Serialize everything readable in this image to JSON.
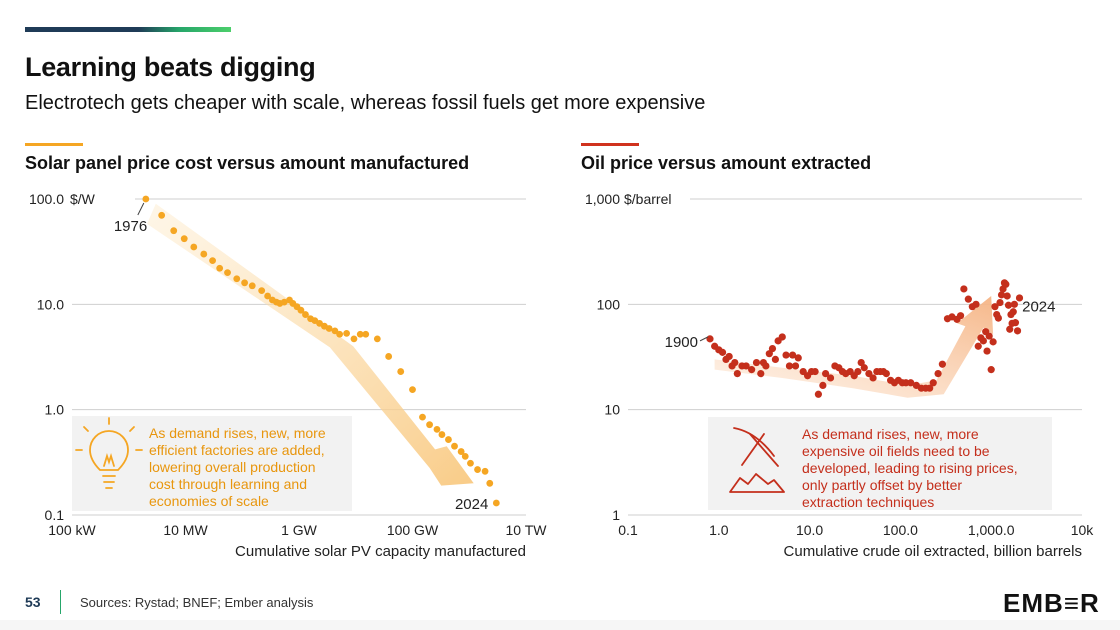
{
  "title": "Learning beats digging",
  "subtitle": "Electrotech gets cheaper with scale, whereas fossil fuels get more expensive",
  "footer": {
    "page_number": "53",
    "sources": "Sources: Rystad; BNEF; Ember analysis",
    "logo": "EMB≡R"
  },
  "colors": {
    "solar": "#f5a623",
    "oil": "#c42f1c",
    "brand": "#1f3b57",
    "green": "#26a66a"
  },
  "chart_data": [
    {
      "type": "scatter",
      "title": "Solar panel price cost versus amount manufactured",
      "xlabel": "Cumulative solar PV capacity manufactured",
      "unit_label": "$/W",
      "x_scale": "log",
      "y_scale": "log",
      "xlim": [
        0.1,
        10000000
      ],
      "ylim": [
        0.1,
        100
      ],
      "x_ticks": [
        {
          "value": 0.1,
          "label": "100 kW"
        },
        {
          "value": 10,
          "label": "10 MW"
        },
        {
          "value": 1000,
          "label": "1 GW"
        },
        {
          "value": 100000,
          "label": "100 GW"
        },
        {
          "value": 10000000,
          "label": "10 TW"
        }
      ],
      "y_ticks": [
        {
          "value": 100,
          "label": "100.0"
        },
        {
          "value": 10,
          "label": "10.0"
        },
        {
          "value": 1,
          "label": "1.0"
        },
        {
          "value": 0.1,
          "label": "0.1"
        }
      ],
      "annotations": [
        {
          "label": "1976",
          "x": 2.0,
          "y": 100
        },
        {
          "label": "2024",
          "x": 3000000,
          "y": 0.13
        }
      ],
      "callout": [
        "As demand rises, new, more",
        "efficient factories are added,",
        "lowering overall production",
        "cost through learning and",
        "economies of scale"
      ],
      "series": [
        {
          "color": "#f5a623",
          "points": [
            [
              2.0,
              100
            ],
            [
              3.8,
              70
            ],
            [
              6.2,
              50
            ],
            [
              9.5,
              42
            ],
            [
              14,
              35
            ],
            [
              21,
              30
            ],
            [
              30,
              26
            ],
            [
              40,
              22
            ],
            [
              55,
              20
            ],
            [
              80,
              17.5
            ],
            [
              110,
              16
            ],
            [
              150,
              15
            ],
            [
              220,
              13.5
            ],
            [
              280,
              12
            ],
            [
              340,
              11
            ],
            [
              400,
              10.5
            ],
            [
              460,
              10.2
            ],
            [
              550,
              10.5
            ],
            [
              680,
              11
            ],
            [
              780,
              10.2
            ],
            [
              920,
              9.5
            ],
            [
              1080,
              8.8
            ],
            [
              1300,
              8
            ],
            [
              1600,
              7.3
            ],
            [
              1900,
              7
            ],
            [
              2300,
              6.6
            ],
            [
              2800,
              6.2
            ],
            [
              3400,
              5.9
            ],
            [
              4300,
              5.6
            ],
            [
              5200,
              5.2
            ],
            [
              6900,
              5.3
            ],
            [
              9300,
              4.7
            ],
            [
              12000,
              5.2
            ],
            [
              15000,
              5.2
            ],
            [
              24000,
              4.7
            ],
            [
              38000,
              3.2
            ],
            [
              62000,
              2.3
            ],
            [
              100000,
              1.55
            ],
            [
              150000,
              0.85
            ],
            [
              200000,
              0.72
            ],
            [
              270000,
              0.65
            ],
            [
              330000,
              0.58
            ],
            [
              430000,
              0.52
            ],
            [
              550000,
              0.45
            ],
            [
              720000,
              0.4
            ],
            [
              850000,
              0.36
            ],
            [
              1050000,
              0.31
            ],
            [
              1400000,
              0.27
            ],
            [
              1900000,
              0.26
            ],
            [
              2300000,
              0.2
            ],
            [
              3000000,
              0.13
            ]
          ]
        }
      ]
    },
    {
      "type": "scatter",
      "title": "Oil price versus amount extracted",
      "xlabel": "Cumulative crude oil extracted, billion barrels",
      "unit_label": "$/barrel",
      "x_scale": "log",
      "y_scale": "log",
      "xlim": [
        0.1,
        10000
      ],
      "ylim": [
        1,
        1000
      ],
      "x_ticks": [
        {
          "value": 0.1,
          "label": "0.1"
        },
        {
          "value": 1,
          "label": "1.0"
        },
        {
          "value": 10,
          "label": "10.0"
        },
        {
          "value": 100,
          "label": "100.0"
        },
        {
          "value": 1000,
          "label": "1,000.0"
        },
        {
          "value": 10000,
          "label": "10k"
        }
      ],
      "y_ticks": [
        {
          "value": 1000,
          "label": "1,000"
        },
        {
          "value": 100,
          "label": "100"
        },
        {
          "value": 10,
          "label": "10"
        },
        {
          "value": 1,
          "label": "1"
        }
      ],
      "annotations": [
        {
          "label": "1900",
          "x": 0.8,
          "y": 47
        },
        {
          "label": "2024",
          "x": 1700,
          "y": 82
        }
      ],
      "callout": [
        "As demand rises, new, more",
        "expensive oil fields need to be",
        "developed, leading to rising prices,",
        "only partly offset by better",
        "extraction techniques"
      ],
      "series": [
        {
          "color": "#c42f1c",
          "points": [
            [
              0.8,
              47
            ],
            [
              0.9,
              40
            ],
            [
              1.0,
              37
            ],
            [
              1.1,
              35
            ],
            [
              1.2,
              30
            ],
            [
              1.3,
              32
            ],
            [
              1.4,
              26
            ],
            [
              1.5,
              28
            ],
            [
              1.6,
              22
            ],
            [
              1.8,
              26
            ],
            [
              2.0,
              26
            ],
            [
              2.3,
              24
            ],
            [
              2.6,
              28
            ],
            [
              2.9,
              22
            ],
            [
              3.1,
              28
            ],
            [
              3.3,
              26
            ],
            [
              3.6,
              34
            ],
            [
              3.9,
              38
            ],
            [
              4.2,
              30
            ],
            [
              4.5,
              45
            ],
            [
              5.0,
              49
            ],
            [
              5.5,
              33
            ],
            [
              6.0,
              26
            ],
            [
              6.5,
              33
            ],
            [
              7.0,
              26
            ],
            [
              7.5,
              31
            ],
            [
              8.5,
              23
            ],
            [
              9.5,
              21
            ],
            [
              10.5,
              23
            ],
            [
              11.5,
              23
            ],
            [
              12.5,
              14
            ],
            [
              14,
              17
            ],
            [
              15,
              22
            ],
            [
              17,
              20
            ],
            [
              19,
              26
            ],
            [
              21,
              25
            ],
            [
              23,
              23
            ],
            [
              25,
              22
            ],
            [
              28,
              23
            ],
            [
              31,
              21
            ],
            [
              34,
              23
            ],
            [
              37,
              28
            ],
            [
              40,
              25
            ],
            [
              45,
              22
            ],
            [
              50,
              20
            ],
            [
              55,
              23
            ],
            [
              60,
              23
            ],
            [
              65,
              23
            ],
            [
              70,
              22
            ],
            [
              78,
              19
            ],
            [
              86,
              18
            ],
            [
              95,
              19
            ],
            [
              105,
              18
            ],
            [
              115,
              18
            ],
            [
              130,
              18
            ],
            [
              150,
              17
            ],
            [
              170,
              16
            ],
            [
              190,
              16
            ],
            [
              210,
              16
            ],
            [
              230,
              18
            ],
            [
              260,
              22
            ],
            [
              290,
              27
            ],
            [
              330,
              73
            ],
            [
              370,
              76
            ],
            [
              420,
              72
            ],
            [
              460,
              78
            ],
            [
              500,
              140
            ],
            [
              560,
              112
            ],
            [
              620,
              95
            ],
            [
              680,
              100
            ],
            [
              720,
              40
            ],
            [
              770,
              48
            ],
            [
              820,
              45
            ],
            [
              870,
              55
            ],
            [
              900,
              36
            ],
            [
              950,
              50
            ],
            [
              1000,
              24
            ],
            [
              1050,
              44
            ],
            [
              1100,
              95
            ],
            [
              1150,
              80
            ],
            [
              1200,
              74
            ],
            [
              1250,
              104
            ],
            [
              1300,
              123
            ],
            [
              1350,
              140
            ],
            [
              1400,
              160
            ],
            [
              1450,
              155
            ],
            [
              1500,
              120
            ],
            [
              1550,
              98
            ],
            [
              1600,
              58
            ],
            [
              1650,
              80
            ],
            [
              1700,
              66
            ],
            [
              1750,
              85
            ],
            [
              1800,
              100
            ],
            [
              1850,
              67
            ],
            [
              1950,
              56
            ],
            [
              2050,
              115
            ]
          ]
        }
      ]
    }
  ]
}
